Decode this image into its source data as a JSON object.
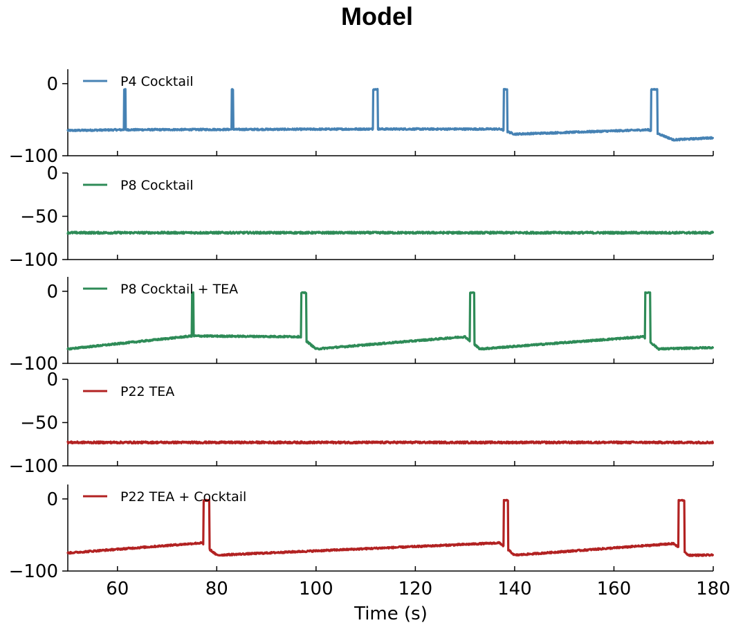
{
  "chart_data": {
    "type": "line",
    "title": "Model",
    "xlabel": "Time (s)",
    "xlim": [
      50,
      180
    ],
    "xticks": [
      60,
      80,
      100,
      120,
      140,
      160,
      180
    ],
    "legend_placement": "top-left",
    "grid": false,
    "panels": [
      {
        "series_name": "P4 Cocktail",
        "color": "#4682b4",
        "ylim": [
          -100,
          20
        ],
        "yticks": [
          0,
          -100
        ],
        "baseline": [
          [
            50,
            -65
          ],
          [
            61,
            -64
          ],
          [
            111,
            -63
          ],
          [
            137,
            -63
          ],
          [
            140,
            -70
          ],
          [
            167,
            -64
          ],
          [
            172,
            -78
          ],
          [
            180,
            -75
          ]
        ],
        "spikes": [
          [
            61.3,
            0.35
          ],
          [
            83,
            0.35
          ],
          [
            111.5,
            0.9
          ],
          [
            137.8,
            0.7
          ],
          [
            167.5,
            1.3
          ]
        ],
        "spike_peak": -8
      },
      {
        "series_name": "P8 Cocktail",
        "color": "#2e8b57",
        "ylim": [
          -100,
          0
        ],
        "yticks": [
          0,
          -50,
          -100
        ],
        "baseline": [
          [
            50,
            -69
          ],
          [
            180,
            -69
          ]
        ],
        "spikes": [],
        "spike_peak": 0
      },
      {
        "series_name": "P8 Cocktail + TEA",
        "color": "#2e8b57",
        "ylim": [
          -100,
          20
        ],
        "yticks": [
          0,
          -100
        ],
        "baseline": [
          [
            50,
            -80
          ],
          [
            75,
            -62
          ],
          [
            97,
            -63
          ],
          [
            100,
            -80
          ],
          [
            130,
            -63
          ],
          [
            133,
            -80
          ],
          [
            166,
            -63
          ],
          [
            169,
            -80
          ],
          [
            180,
            -78
          ]
        ],
        "spikes": [
          [
            75,
            0.35
          ],
          [
            97,
            1.0
          ],
          [
            131,
            0.9
          ],
          [
            166.3,
            1.0
          ]
        ],
        "spike_peak": -2
      },
      {
        "series_name": "P22 TEA",
        "color": "#b22222",
        "ylim": [
          -100,
          0
        ],
        "yticks": [
          0,
          -50,
          -100
        ],
        "baseline": [
          [
            50,
            -73
          ],
          [
            180,
            -73
          ]
        ],
        "spikes": [],
        "spike_peak": 0
      },
      {
        "series_name": "P22 TEA + Cocktail",
        "color": "#b22222",
        "ylim": [
          -100,
          20
        ],
        "yticks": [
          0,
          -100
        ],
        "baseline": [
          [
            50,
            -75
          ],
          [
            77,
            -61
          ],
          [
            80,
            -78
          ],
          [
            137,
            -61
          ],
          [
            140,
            -78
          ],
          [
            172,
            -62
          ],
          [
            175,
            -78
          ],
          [
            180,
            -78
          ]
        ],
        "spikes": [
          [
            77.3,
            1.2
          ],
          [
            137.8,
            0.9
          ],
          [
            173,
            1.2
          ]
        ],
        "spike_peak": -2
      }
    ]
  }
}
